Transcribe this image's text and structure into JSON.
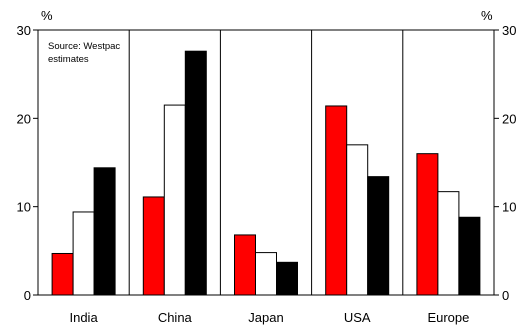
{
  "chart_data": {
    "type": "bar",
    "source_note": [
      "Source: Westpac",
      "estimates"
    ],
    "unit_left": "%",
    "unit_right": "%",
    "categories": [
      "India",
      "China",
      "Japan",
      "USA",
      "Europe"
    ],
    "series": [
      {
        "color": "#ff0000",
        "values": [
          4.7,
          11.1,
          6.8,
          21.4,
          16.0
        ]
      },
      {
        "color": "#ffffff",
        "values": [
          9.4,
          21.5,
          4.8,
          17.0,
          11.7
        ]
      },
      {
        "color": "#000000",
        "values": [
          14.4,
          27.6,
          3.7,
          13.4,
          8.8
        ]
      }
    ],
    "yticks": [
      "0",
      "10",
      "20",
      "30"
    ],
    "ylim": [
      0,
      30
    ],
    "grid": "vertical separators between categories"
  }
}
